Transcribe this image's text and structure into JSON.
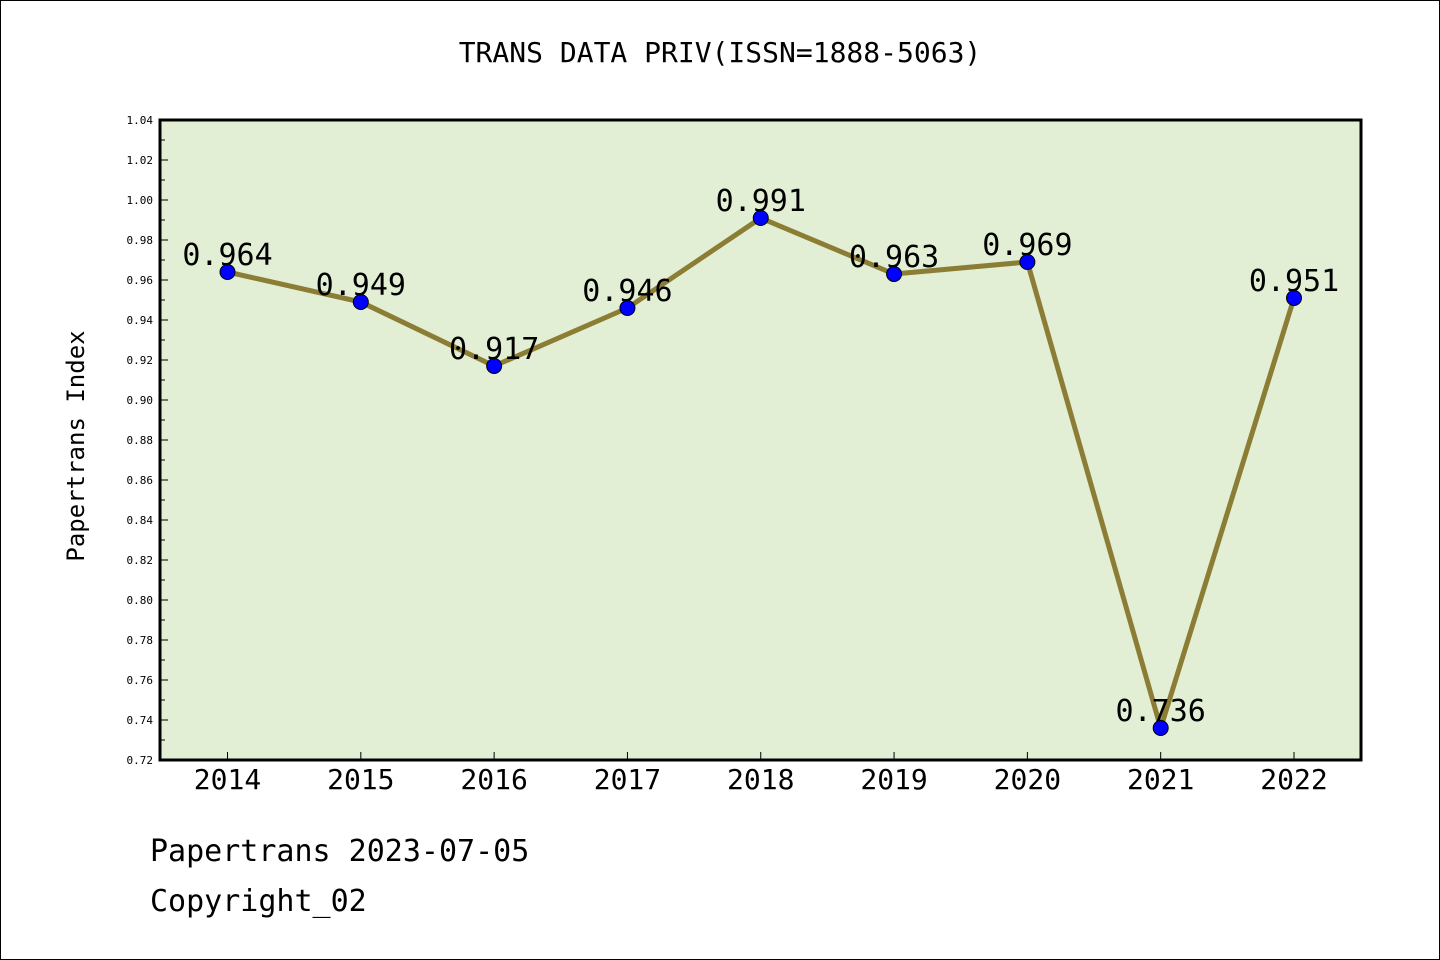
{
  "chart_data": {
    "type": "line",
    "title": "TRANS DATA PRIV(ISSN=1888-5063)",
    "xlabel": "",
    "ylabel": "Papertrans Index",
    "categories": [
      "2014",
      "2015",
      "2016",
      "2017",
      "2018",
      "2019",
      "2020",
      "2021",
      "2022"
    ],
    "series": [
      {
        "values": [
          0.964,
          0.949,
          0.917,
          0.946,
          0.991,
          0.963,
          0.969,
          0.736,
          0.951
        ],
        "data_labels": [
          "0.964",
          "0.949",
          "0.917",
          "0.946",
          "0.991",
          "0.963",
          "0.969",
          "0.736",
          "0.951"
        ]
      }
    ],
    "ylim": [
      0.72,
      1.04
    ],
    "yticks": [
      "0.72",
      "0.74",
      "0.76",
      "0.78",
      "0.80",
      "0.82",
      "0.84",
      "0.86",
      "0.88",
      "0.90",
      "0.92",
      "0.94",
      "0.96",
      "0.98",
      "1.00",
      "1.02",
      "1.04"
    ],
    "grid": false,
    "colors": {
      "plot_background": "#e2efd5",
      "line": "#8c7d35",
      "marker": "#0000ff"
    }
  },
  "footer": {
    "date_text": "Papertrans 2023-07-05",
    "copyright_text": "Copyright_02"
  }
}
